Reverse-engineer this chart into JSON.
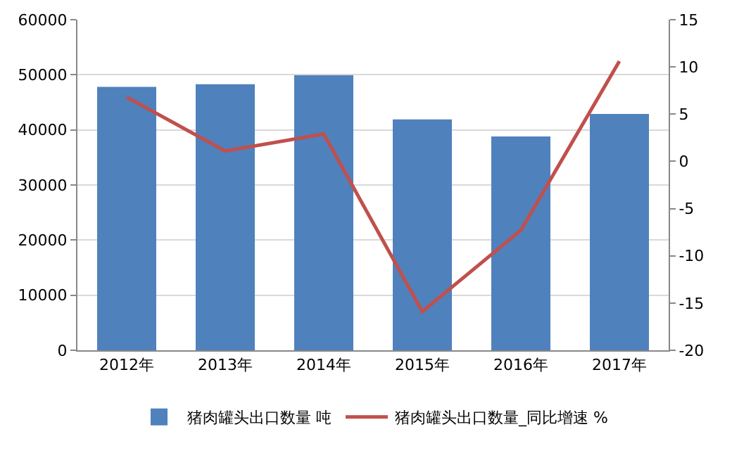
{
  "chart_data": {
    "type": "bar",
    "categories": [
      "2012年",
      "2013年",
      "2014年",
      "2015年",
      "2016年",
      "2017年"
    ],
    "series": [
      {
        "name": "猪肉罐头出口数量 吨",
        "color": "#4f81bd",
        "values": [
          47800,
          48300,
          49900,
          41900,
          38800,
          42900
        ]
      },
      {
        "name": "猪肉罐头出口数量_同比增速 %",
        "color": "#c0504d",
        "type": "line",
        "axis": "y2",
        "values": [
          6.8,
          1.1,
          2.9,
          -15.9,
          -7.3,
          10.6
        ]
      }
    ],
    "ylim": [
      0,
      60000
    ],
    "yticks": [
      0,
      10000,
      20000,
      30000,
      40000,
      50000,
      60000
    ],
    "y2lim": [
      -20,
      15
    ],
    "y2ticks": [
      -20,
      -15,
      -10,
      -5,
      0,
      5,
      10,
      15
    ],
    "grid": "y",
    "legend": "bottom",
    "marker": "none",
    "line_style": "solid"
  }
}
